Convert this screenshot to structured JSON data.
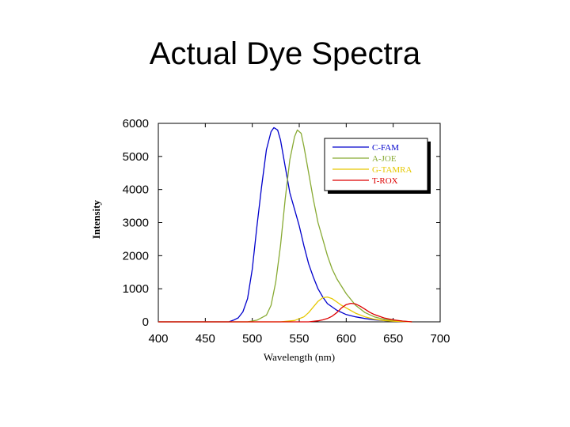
{
  "slide": {
    "title": "Actual Dye Spectra"
  },
  "chart_data": {
    "type": "line",
    "title": "",
    "xlabel": "Wavelength (nm)",
    "ylabel": "Intensity",
    "xlim": [
      400,
      700
    ],
    "ylim": [
      0,
      6000
    ],
    "xticks": [
      400,
      450,
      500,
      550,
      600,
      650,
      700
    ],
    "yticks": [
      0,
      1000,
      2000,
      3000,
      4000,
      5000,
      6000
    ],
    "grid": false,
    "legend_position": "top-right",
    "series": [
      {
        "name": "C-FAM",
        "color": "#0000cc",
        "x": [
          400,
          475,
          480,
          485,
          490,
          495,
          500,
          505,
          510,
          515,
          520,
          523,
          527,
          530,
          535,
          540,
          545,
          550,
          555,
          560,
          565,
          570,
          575,
          580,
          590,
          600,
          610,
          620,
          630,
          640,
          650,
          660,
          670
        ],
        "y": [
          0,
          0,
          50,
          120,
          300,
          700,
          1600,
          2900,
          4100,
          5200,
          5750,
          5870,
          5800,
          5500,
          4700,
          3900,
          3400,
          2900,
          2300,
          1750,
          1350,
          1000,
          750,
          550,
          350,
          220,
          150,
          100,
          60,
          40,
          20,
          10,
          0
        ]
      },
      {
        "name": "A-JOE",
        "color": "#88aa33",
        "x": [
          400,
          495,
          505,
          515,
          520,
          525,
          530,
          535,
          540,
          545,
          548,
          552,
          555,
          560,
          565,
          570,
          575,
          580,
          585,
          590,
          600,
          610,
          620,
          630,
          640,
          650,
          660,
          670
        ],
        "y": [
          0,
          0,
          50,
          200,
          500,
          1200,
          2300,
          3700,
          4900,
          5600,
          5800,
          5700,
          5300,
          4500,
          3700,
          3000,
          2500,
          2000,
          1600,
          1300,
          850,
          500,
          280,
          150,
          80,
          40,
          20,
          0
        ]
      },
      {
        "name": "G-TAMRA",
        "color": "#e6c800",
        "x": [
          400,
          530,
          545,
          555,
          560,
          565,
          570,
          575,
          580,
          585,
          590,
          595,
          600,
          610,
          620,
          630,
          640,
          650,
          660,
          670
        ],
        "y": [
          0,
          0,
          40,
          150,
          280,
          450,
          620,
          730,
          750,
          700,
          600,
          500,
          420,
          260,
          150,
          80,
          40,
          20,
          10,
          0
        ]
      },
      {
        "name": "T-ROX",
        "color": "#dd0000",
        "x": [
          400,
          560,
          570,
          575,
          580,
          585,
          590,
          595,
          600,
          605,
          610,
          615,
          620,
          625,
          630,
          640,
          650,
          660,
          670
        ],
        "y": [
          0,
          0,
          30,
          60,
          100,
          170,
          280,
          420,
          520,
          560,
          540,
          470,
          380,
          290,
          220,
          120,
          60,
          25,
          0
        ]
      }
    ]
  }
}
